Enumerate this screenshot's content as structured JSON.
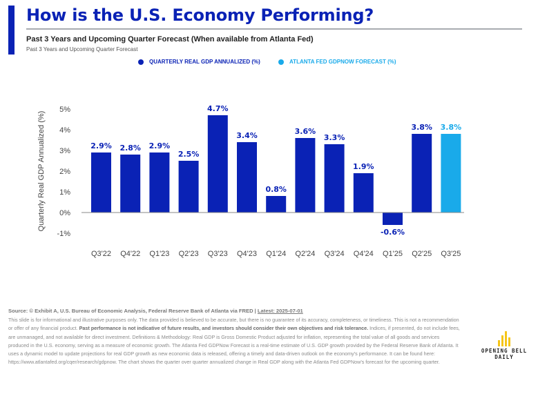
{
  "header": {
    "title": "How is the U.S. Economy Performing?",
    "subtitle": "Past 3 Years and Upcoming Quarter Forecast (When available from Atlanta Fed)",
    "subsubtitle": "Past 3 Years and Upcoming Quarter Forecast"
  },
  "colors": {
    "primary": "#0a22b5",
    "forecast": "#19aaea",
    "axis": "#888888"
  },
  "legend": [
    {
      "label": "QUARTERLY REAL GDP ANNUALIZED (%)",
      "color": "#0a22b5"
    },
    {
      "label": "ATLANTA FED GDPNOW FORECAST (%)",
      "color": "#19aaea"
    }
  ],
  "chart_data": {
    "type": "bar",
    "title": "How is the U.S. Economy Performing?",
    "xlabel": "",
    "ylabel": "Quarterly Real GDP Annualized (%)",
    "ylim": [
      -1,
      5
    ],
    "yticks": [
      5,
      4,
      3,
      2,
      1,
      0,
      -1
    ],
    "ytick_labels": [
      "5%",
      "4%",
      "3%",
      "2%",
      "1%",
      "0%",
      "-1%"
    ],
    "grid": false,
    "legend_position": "top-center",
    "categories": [
      "Q3'22",
      "Q4'22",
      "Q1'23",
      "Q2'23",
      "Q3'23",
      "Q4'23",
      "Q1'24",
      "Q2'24",
      "Q3'24",
      "Q4'24",
      "Q1'25",
      "Q2'25",
      "Q3'25"
    ],
    "series": [
      {
        "name": "QUARTERLY REAL GDP ANNUALIZED (%)",
        "color": "#0a22b5",
        "values": [
          2.9,
          2.8,
          2.9,
          2.5,
          4.7,
          3.4,
          0.8,
          3.6,
          3.3,
          1.9,
          -0.6,
          3.8,
          null
        ],
        "labels": [
          "2.9%",
          "2.8%",
          "2.9%",
          "2.5%",
          "4.7%",
          "3.4%",
          "0.8%",
          "3.6%",
          "3.3%",
          "1.9%",
          "-0.6%",
          "3.8%",
          null
        ]
      },
      {
        "name": "ATLANTA FED GDPNOW FORECAST (%)",
        "color": "#19aaea",
        "values": [
          null,
          null,
          null,
          null,
          null,
          null,
          null,
          null,
          null,
          null,
          null,
          null,
          3.8
        ],
        "labels": [
          null,
          null,
          null,
          null,
          null,
          null,
          null,
          null,
          null,
          null,
          null,
          null,
          "3.8%"
        ]
      }
    ]
  },
  "footer": {
    "source": "Source: © Exhibit A, U.S. Bureau of Economic Analysis, Federal Reserve Bank of Atlanta via FRED | ",
    "latest": "Latest: 2025-07-01",
    "disclaimer_1": "This slide is for informational and illustrative purposes only. The data provided is believed to be accurate, but there is no guarantee of its accuracy, completeness, or timeliness. This is not a recommendation or offer of any financial product. ",
    "disclaimer_bold": "Past performance is not indicative of future results, and investors should consider their own objectives and risk tolerance.",
    "disclaimer_2": " Indices, if presented, do not include fees, are unmanaged, and not available for direct investment. Definitions & Methodology: Real GDP is Gross Domestic Product adjusted for inflation, representing the total value of all goods and services produced in the U.S. economy, serving as a measure of economic growth. The Atlanta Fed GDPNow Forecast is a real-time estimate of U.S. GDP growth provided by the Federal Reserve Bank of Atlanta. It uses a dynamic model to update projections for real GDP growth as new economic data is released, offering a timely and data-driven outlook on the economy's performance. It can be found here: https://www.atlantafed.org/cqer/research/gdpnow. The chart shows the quarter over quarter annualized change in Real GDP along with the Atlanta Fed GDPNow's forecast for the upcoming quarter."
  },
  "logo": {
    "line1": "OPENING BELL",
    "line2": "DAILY",
    "color": "#f5c518"
  }
}
